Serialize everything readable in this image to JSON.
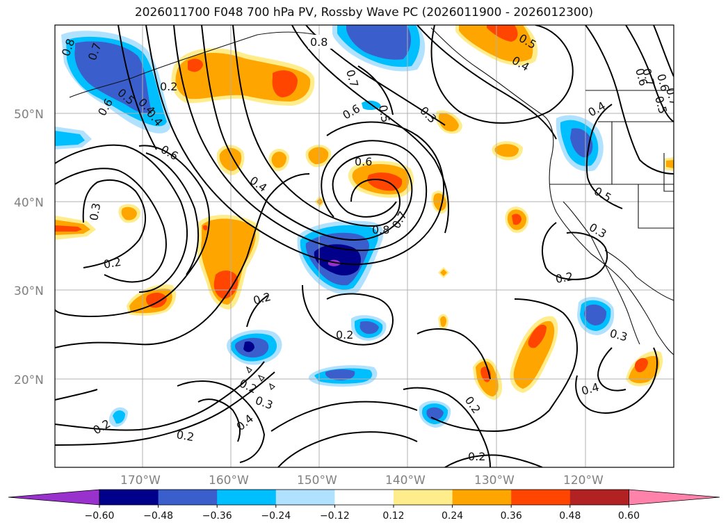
{
  "title": "2026011700 F048 700 hPa PV, Rossby Wave PC (2026011900 - 2026012300)",
  "lat_labels": [
    "50°N",
    "40°N",
    "30°N",
    "20°N"
  ],
  "lon_labels": [
    "170°W",
    "160°W",
    "150°W",
    "140°W",
    "130°W",
    "120°W"
  ],
  "contour_labels": [
    "0.8",
    "0.7",
    "0.5",
    "0.4",
    "0.2",
    "0.6",
    "0.5",
    "0.4",
    "0.8",
    "0.7",
    "0.7",
    "0.6",
    "0.5",
    "0.3",
    "0.6",
    "0.4",
    "0.6",
    "0.4",
    "0.6",
    "0.3",
    "0.2",
    "0.8",
    "0.7",
    "0.5",
    "0.3",
    "0.2",
    "0.2",
    "0.2",
    "0.2",
    "0.3",
    "0.4",
    "0.2",
    "0.2",
    "0.3",
    "0.4",
    "0.2",
    "0.2",
    "0.5",
    "0.6",
    "0.7",
    "0.4"
  ],
  "colorbar": {
    "ticks": [
      "−0.60",
      "−0.48",
      "−0.36",
      "−0.24",
      "−0.12",
      "0.12",
      "0.24",
      "0.36",
      "0.48",
      "0.60"
    ],
    "colors": [
      "#9932cc",
      "#00008b",
      "#3a5fcd",
      "#00bfff",
      "#b0e2ff",
      "#ffffff",
      "#ffec8b",
      "#ffa500",
      "#ff4500",
      "#b22222",
      "#ff82ab"
    ]
  },
  "colors": {
    "neg1": "#b0e2ff",
    "neg2": "#00bfff",
    "neg3": "#3a5fcd",
    "neg4": "#00008b",
    "neg5": "#9932cc",
    "pos1": "#ffec8b",
    "pos2": "#ffa500",
    "pos3": "#ff4500",
    "pos4": "#b22222",
    "pos5": "#ff82ab"
  }
}
